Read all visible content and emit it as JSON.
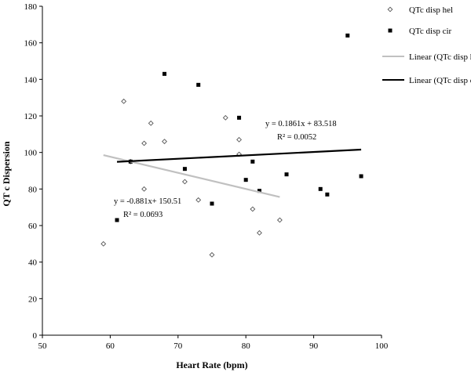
{
  "chart_data": {
    "type": "scatter",
    "xlabel": "Heart Rate (bpm)",
    "ylabel": "QT c Dispersion",
    "xlim": [
      50,
      100
    ],
    "ylim": [
      0,
      180
    ],
    "x_ticks": [
      "50",
      "60",
      "70",
      "80",
      "90",
      "100"
    ],
    "y_ticks": [
      "0",
      "20",
      "40",
      "60",
      "80",
      "100",
      "120",
      "140",
      "160",
      "180"
    ],
    "grid": false,
    "legend_position": "right",
    "series": [
      {
        "name": "QTc disp hel",
        "marker": "open-diamond",
        "color": "#555555",
        "points": [
          [
            59,
            50
          ],
          [
            62,
            128
          ],
          [
            63,
            95
          ],
          [
            65,
            105
          ],
          [
            65,
            80
          ],
          [
            66,
            116
          ],
          [
            68,
            106
          ],
          [
            71,
            84
          ],
          [
            73,
            74
          ],
          [
            75,
            44
          ],
          [
            77,
            119
          ],
          [
            79,
            107
          ],
          [
            79,
            99
          ],
          [
            81,
            69
          ],
          [
            82,
            56
          ],
          [
            85,
            63
          ]
        ]
      },
      {
        "name": "QTc disp cir",
        "marker": "filled-square",
        "color": "#000000",
        "points": [
          [
            61,
            63
          ],
          [
            63,
            95
          ],
          [
            68,
            143
          ],
          [
            71,
            91
          ],
          [
            73,
            137
          ],
          [
            75,
            72
          ],
          [
            79,
            119
          ],
          [
            80,
            85
          ],
          [
            81,
            95
          ],
          [
            82,
            79
          ],
          [
            86,
            88
          ],
          [
            91,
            80
          ],
          [
            92,
            77
          ],
          [
            95,
            164
          ],
          [
            97,
            87
          ]
        ]
      },
      {
        "name": "Linear (QTc disp hel)",
        "type": "trendline",
        "color": "#c0c0c0",
        "x_range": [
          59,
          85
        ],
        "slope": -0.881,
        "intercept": 150.51,
        "equation": "y = -0.881x+ 150.51",
        "r_squared": "R² = 0.0693"
      },
      {
        "name": "Linear (QTc disp cir)",
        "type": "trendline",
        "color": "#000000",
        "x_range": [
          61,
          97
        ],
        "slope": 0.1861,
        "intercept": 83.518,
        "equation": "y = 0.1861x + 83.518",
        "r_squared": "R² = 0.0052"
      }
    ]
  }
}
